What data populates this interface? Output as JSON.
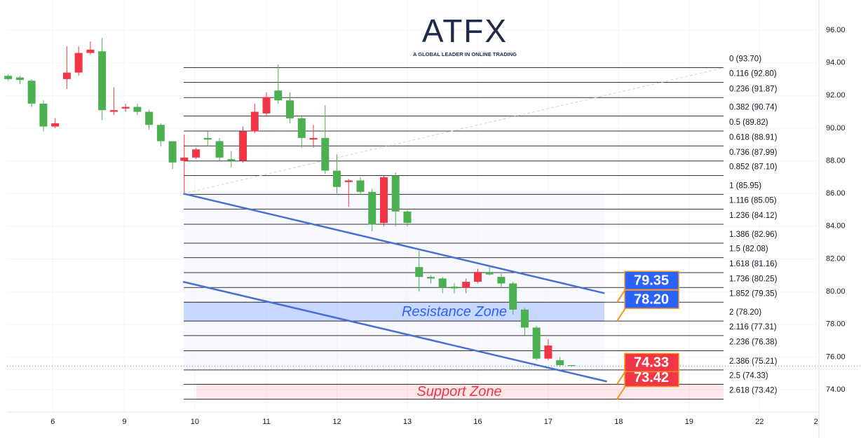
{
  "chart_data": {
    "type": "candlestick",
    "watermark": {
      "title": "ATFX",
      "subtitle": "A GLOBAL LEADER IN ONLINE TRADING"
    },
    "open": [
      93.2,
      93.1,
      92.9,
      91.5,
      90.1,
      93.0,
      93.4,
      94.6,
      94.7,
      91.0,
      91.2,
      91.3,
      91.0,
      90.2,
      89.2,
      88.0,
      88.2,
      89.4,
      89.2,
      88.1,
      88.0,
      89.8,
      90.9,
      92.3,
      91.7,
      90.6,
      89.3,
      89.4,
      87.4,
      86.7,
      86.8,
      86.1,
      84.2,
      87.1,
      84.9,
      81.5,
      80.9,
      80.8,
      80.3,
      80.25,
      80.6,
      81.2,
      80.9,
      80.5,
      78.9,
      77.8,
      75.9,
      75.8,
      75.5
    ],
    "high": [
      93.3,
      93.2,
      93.0,
      91.7,
      90.6,
      95.0,
      95.0,
      95.3,
      95.5,
      92.5,
      91.5,
      91.5,
      91.1,
      90.3,
      89.2,
      89.6,
      88.8,
      89.8,
      89.4,
      88.6,
      90.1,
      91.5,
      92.2,
      93.9,
      92.2,
      90.8,
      90.2,
      91.4,
      88.4,
      86.9,
      87.0,
      86.3,
      87.1,
      87.3,
      85.0,
      82.5,
      81.0,
      80.9,
      80.5,
      80.8,
      81.4,
      81.5,
      81.1,
      80.6,
      79.0,
      77.9,
      77.1,
      76.0,
      75.5
    ],
    "low": [
      92.9,
      92.7,
      91.3,
      89.8,
      90.0,
      92.4,
      93.2,
      94.5,
      90.5,
      90.8,
      91.0,
      90.8,
      89.9,
      88.9,
      87.5,
      86.0,
      88.1,
      88.9,
      88.0,
      87.6,
      87.9,
      89.7,
      90.7,
      91.5,
      90.3,
      88.8,
      88.8,
      87.2,
      86.0,
      85.2,
      85.9,
      83.7,
      84.0,
      84.0,
      84.0,
      80.0,
      80.5,
      79.9,
      79.9,
      79.9,
      80.5,
      81.0,
      80.3,
      78.6,
      77.3,
      75.8,
      75.8,
      75.4,
      75.4
    ],
    "close": [
      93.0,
      92.95,
      91.5,
      90.1,
      90.3,
      93.4,
      94.6,
      94.8,
      91.1,
      91.1,
      91.3,
      91.0,
      90.2,
      89.2,
      87.9,
      88.2,
      88.7,
      89.3,
      88.2,
      88.0,
      89.8,
      91.0,
      91.9,
      91.7,
      90.6,
      89.4,
      89.4,
      87.4,
      86.4,
      86.8,
      86.1,
      84.1,
      87.0,
      84.9,
      84.2,
      80.9,
      80.8,
      80.25,
      80.2,
      80.6,
      81.2,
      81.05,
      80.5,
      78.9,
      77.8,
      75.9,
      76.7,
      75.5,
      75.45
    ],
    "up_color": "#f23645",
    "down_color": "#4caf50",
    "xlim": [
      -0.1,
      69
    ],
    "xticks": [
      {
        "value": 3.8,
        "label": "6"
      },
      {
        "value": 9.9,
        "label": "9"
      },
      {
        "value": 15.9,
        "label": "10"
      },
      {
        "value": 22,
        "label": "11"
      },
      {
        "value": 28,
        "label": "12"
      },
      {
        "value": 34,
        "label": "13"
      },
      {
        "value": 40,
        "label": "16"
      },
      {
        "value": 46,
        "label": "17"
      },
      {
        "value": 52,
        "label": "18"
      },
      {
        "value": 58,
        "label": "19"
      },
      {
        "value": 64,
        "label": "22"
      },
      {
        "value": 68.8,
        "label": "2"
      }
    ],
    "ylim": [
      72.63,
      97.84
    ],
    "yticks": [
      {
        "value": 74,
        "label": "74.00"
      },
      {
        "value": 76,
        "label": "76.00"
      },
      {
        "value": 78,
        "label": "78.00"
      },
      {
        "value": 80,
        "label": "80.00"
      },
      {
        "value": 82,
        "label": "82.00"
      },
      {
        "value": 84,
        "label": "84.00"
      },
      {
        "value": 86,
        "label": "86.00"
      },
      {
        "value": 88,
        "label": "88.00"
      },
      {
        "value": 90,
        "label": "90.00"
      },
      {
        "value": 92,
        "label": "92.00"
      },
      {
        "value": 94,
        "label": "94.00"
      },
      {
        "value": 96,
        "label": "96.00"
      }
    ],
    "grid": true,
    "fib_levels": [
      {
        "value": 93.7,
        "label": "0 (93.70)"
      },
      {
        "value": 92.8,
        "label": "0.116 (92.80)"
      },
      {
        "value": 91.87,
        "label": "0.236 (91.87)"
      },
      {
        "value": 90.74,
        "label": "0.382 (90.74)"
      },
      {
        "value": 89.82,
        "label": "0.5 (89.82)"
      },
      {
        "value": 88.91,
        "label": "0.618 (88.91)"
      },
      {
        "value": 87.99,
        "label": "0.736 (87.99)"
      },
      {
        "value": 87.1,
        "label": "0.852 (87.10)"
      },
      {
        "value": 85.95,
        "label": "1 (85.95)"
      },
      {
        "value": 85.05,
        "label": "1.116 (85.05)"
      },
      {
        "value": 84.12,
        "label": "1.236 (84.12)"
      },
      {
        "value": 82.96,
        "label": "1.386 (82.96)"
      },
      {
        "value": 82.08,
        "label": "1.5 (82.08)"
      },
      {
        "value": 81.16,
        "label": "1.618 (81.16)"
      },
      {
        "value": 80.25,
        "label": "1.736 (80.25)"
      },
      {
        "value": 79.35,
        "label": "1.852 (79.35)"
      },
      {
        "value": 78.2,
        "label": "2 (78.20)"
      },
      {
        "value": 77.31,
        "label": "2.116 (77.31)"
      },
      {
        "value": 76.38,
        "label": "2.236 (76.38)"
      },
      {
        "value": 75.21,
        "label": "2.386 (75.21)"
      },
      {
        "value": 74.33,
        "label": "2.5 (74.33)"
      },
      {
        "value": 73.42,
        "label": "2.618 (73.42)"
      }
    ],
    "trendlines": [
      {
        "x": [
          14.9,
          50.8
        ],
        "y": [
          86.0,
          79.9
        ],
        "color": "#4a6fd1"
      },
      {
        "x": [
          14.9,
          51.0
        ],
        "y": [
          80.6,
          74.5
        ],
        "color": "#4a6fd1"
      },
      {
        "x": [
          14.9,
          61.0
        ],
        "y": [
          86.0,
          93.7
        ],
        "color": "#d1d4dc",
        "dashed": true
      }
    ],
    "zones": [
      {
        "name": "Resistance Zone",
        "top": 79.35,
        "bottom": 78.2,
        "top_label": "79.35",
        "bottom_label": "78.20",
        "color": "#2962ff"
      },
      {
        "name": "Support Zone",
        "top": 74.33,
        "bottom": 73.42,
        "top_label": "74.33",
        "bottom_label": "73.42",
        "color": "#f23645"
      }
    ],
    "last_price": 75.45
  }
}
